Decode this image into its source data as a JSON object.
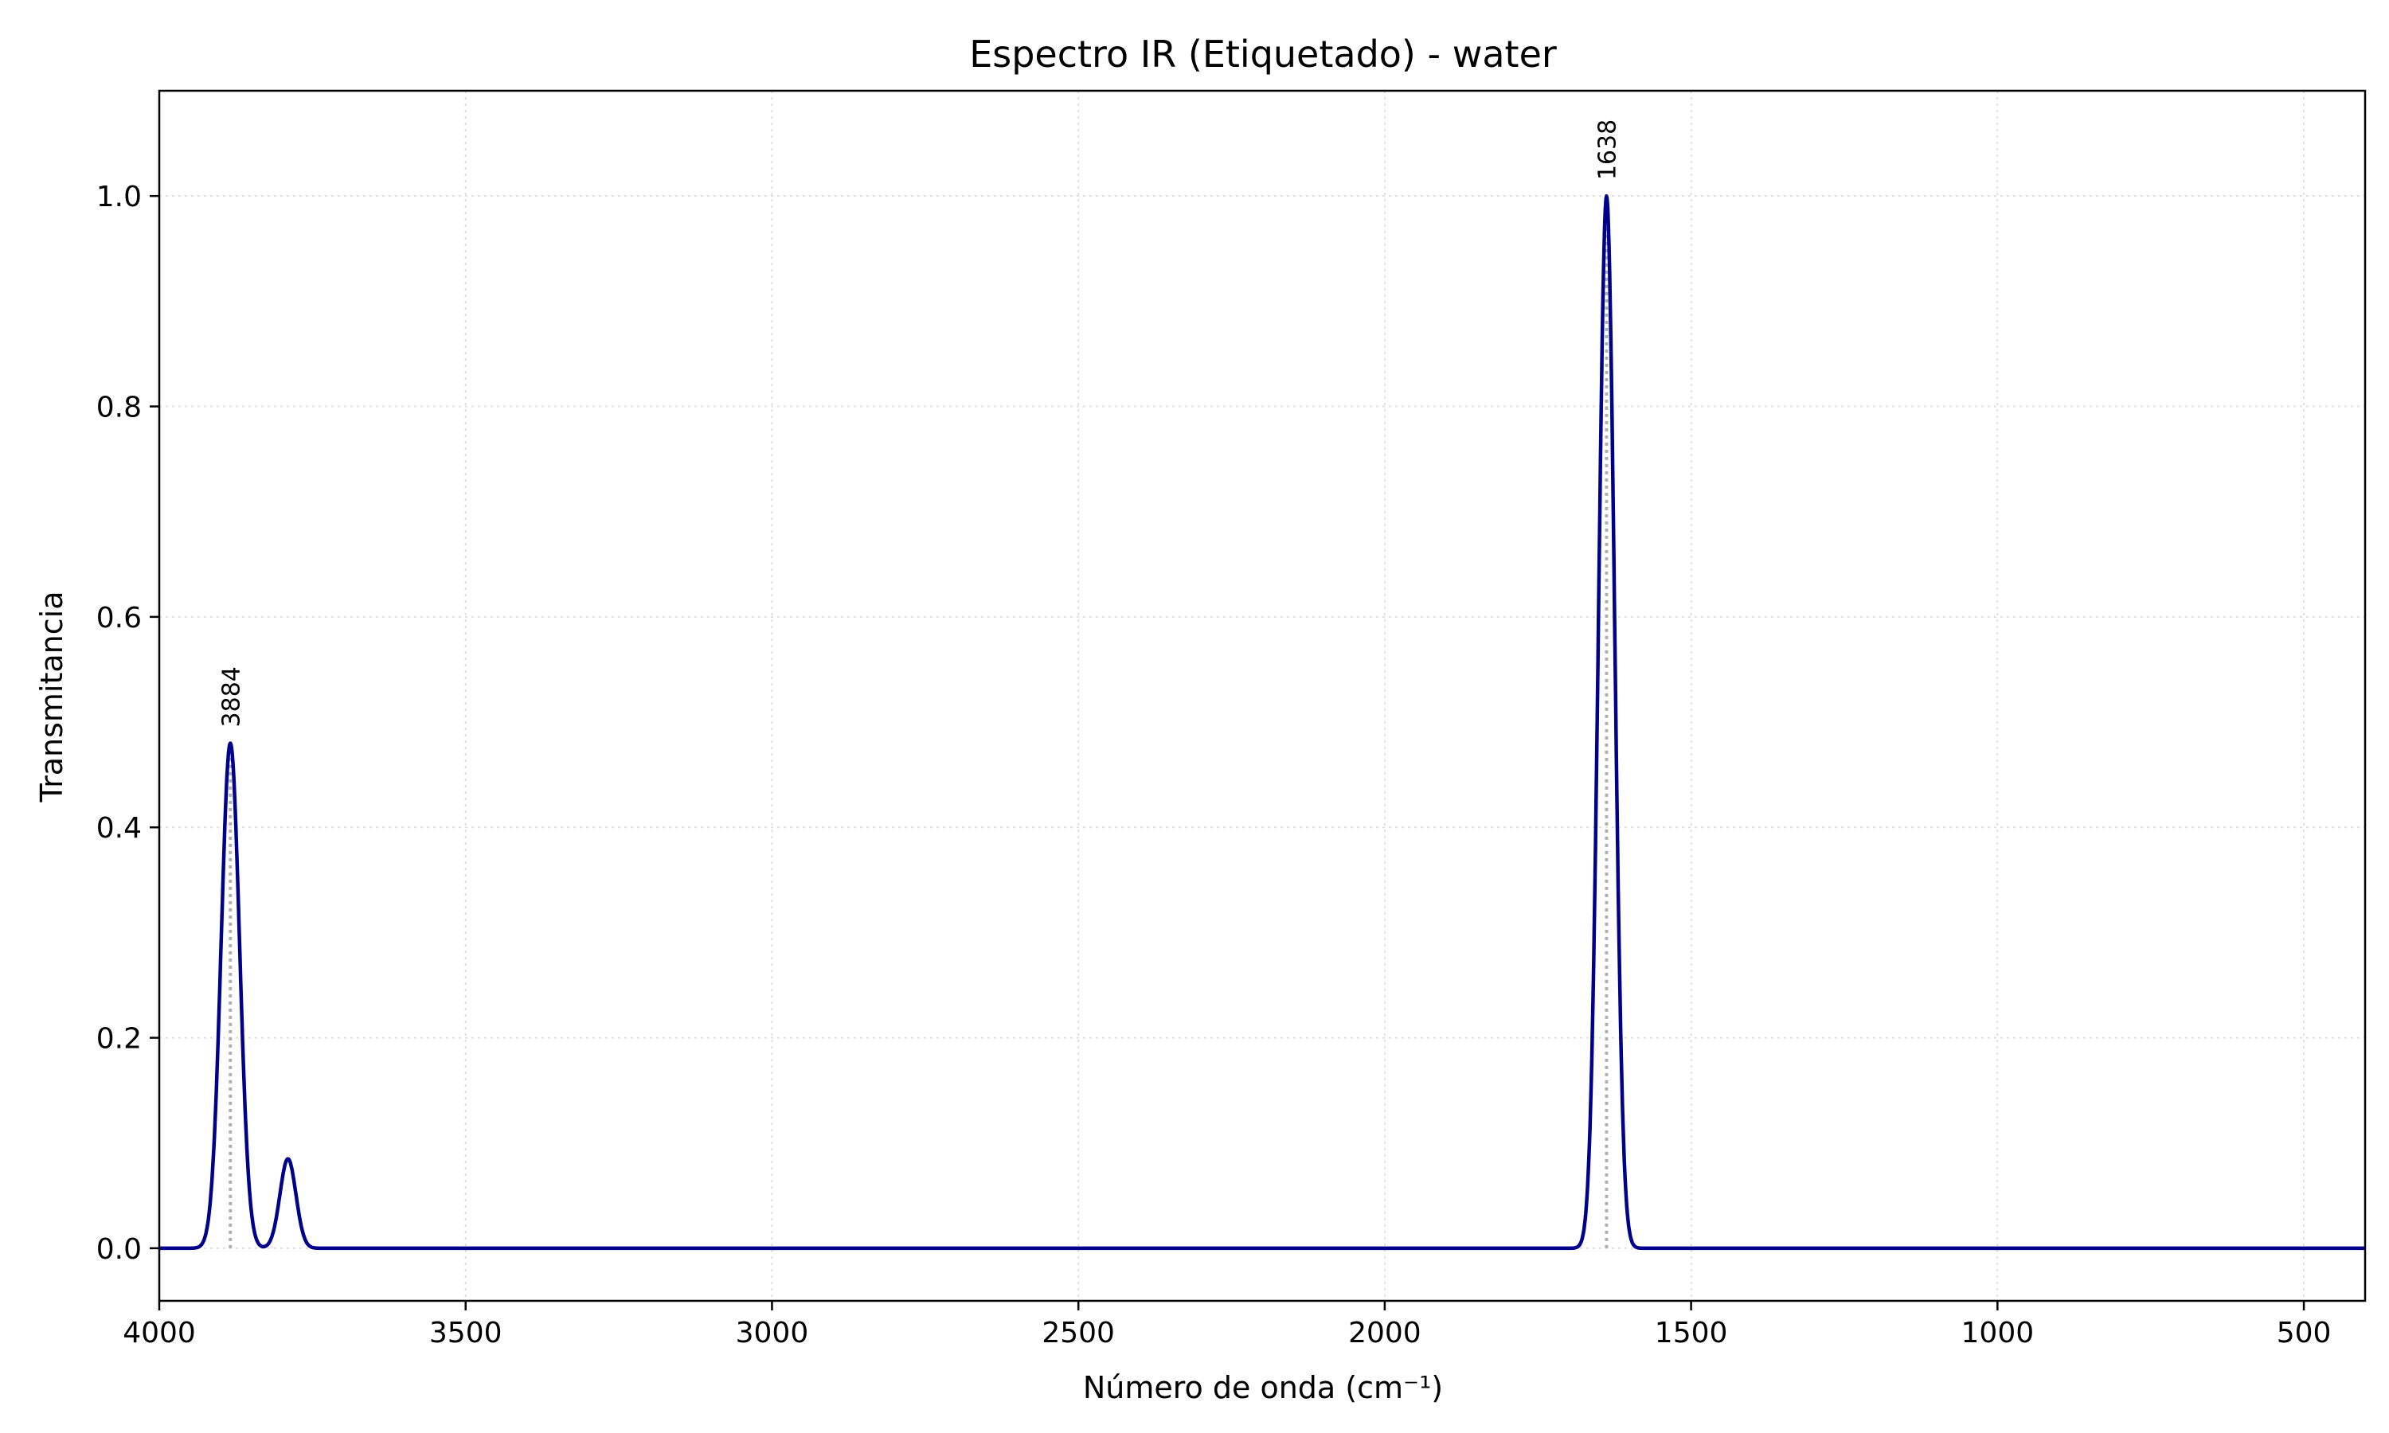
{
  "chart_data": {
    "type": "line",
    "title": "Espectro IR (Etiquetado) - water",
    "xlabel": "Número de onda (cm⁻¹)",
    "ylabel": "Transmitancia",
    "xlim": [
      4000,
      400
    ],
    "ylim": [
      -0.05,
      1.1
    ],
    "x_inverted": true,
    "grid": true,
    "xticks": [
      4000,
      3500,
      3000,
      2500,
      2000,
      1500,
      1000,
      500
    ],
    "xtick_labels": [
      "4000",
      "3500",
      "3000",
      "2500",
      "2000",
      "1500",
      "1000",
      "500"
    ],
    "yticks": [
      0.0,
      0.2,
      0.4,
      0.6,
      0.8,
      1.0
    ],
    "ytick_labels": [
      "0.0",
      "0.2",
      "0.4",
      "0.6",
      "0.8",
      "1.0"
    ],
    "series": [
      {
        "color": "#00008b",
        "peaks": [
          {
            "center": 3884,
            "height": 0.48,
            "width": 15
          },
          {
            "center": 3790,
            "height": 0.085,
            "width": 13
          },
          {
            "center": 1638,
            "height": 1.0,
            "width": 13
          }
        ]
      }
    ],
    "peak_markers": [
      {
        "x": 3884,
        "y": 0.48,
        "label": "3884"
      },
      {
        "x": 1638,
        "y": 1.0,
        "label": "1638"
      }
    ],
    "colors": {
      "line": "#00008b",
      "marker": "#b0b0b0",
      "grid": "#e0e0e0"
    }
  }
}
